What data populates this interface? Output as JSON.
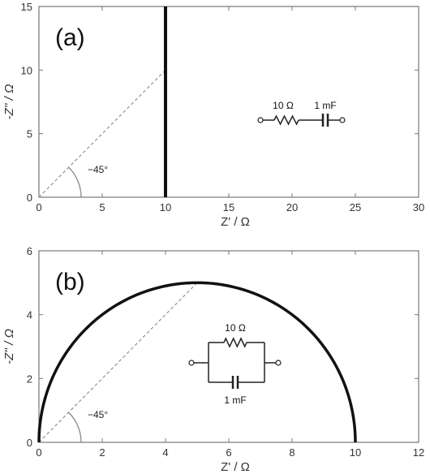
{
  "chart_data": [
    {
      "type": "line",
      "panel_label": "(a)",
      "xlabel": "Z' / Ω",
      "ylabel": "-Z'' / Ω",
      "xlim": [
        0,
        30
      ],
      "ylim": [
        0,
        15
      ],
      "xticks": [
        0,
        5,
        10,
        15,
        20,
        25,
        30
      ],
      "yticks": [
        0,
        5,
        10,
        15
      ],
      "grid": false,
      "series": [
        {
          "values": [
            [
              10,
              0
            ],
            [
              10,
              15
            ]
          ],
          "color": "#111111"
        }
      ],
      "guide_line": {
        "from": [
          0,
          0
        ],
        "to": [
          10,
          10
        ]
      },
      "angle_label": "−45°",
      "circuit": {
        "type": "series",
        "resistor_label": "10 Ω",
        "capacitor_label": "1 mF"
      }
    },
    {
      "type": "line",
      "panel_label": "(b)",
      "xlabel": "Z' / Ω",
      "ylabel": "-Z'' / Ω",
      "xlim": [
        0,
        12
      ],
      "ylim": [
        0,
        6
      ],
      "xticks": [
        0,
        2,
        4,
        6,
        8,
        10,
        12
      ],
      "yticks": [
        0,
        2,
        4,
        6
      ],
      "grid": false,
      "series": [
        {
          "shape": "semicircle",
          "center": [
            5,
            0
          ],
          "radius": 5,
          "color": "#111111"
        }
      ],
      "guide_line": {
        "from": [
          0,
          0
        ],
        "to": [
          5,
          5
        ]
      },
      "angle_label": "−45°",
      "circuit": {
        "type": "parallel",
        "resistor_label": "10 Ω",
        "capacitor_label": "1 mF"
      }
    }
  ]
}
